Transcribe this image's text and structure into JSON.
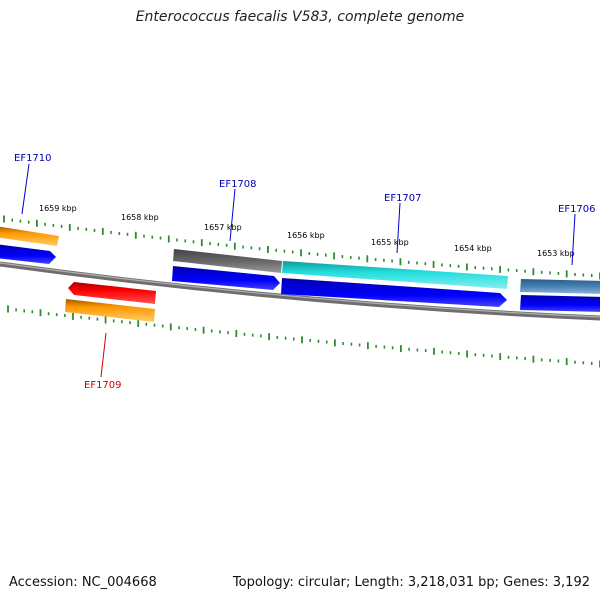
{
  "title": "Enterococcus faecalis V583, complete genome",
  "footer": {
    "accession": "Accession: NC_004668",
    "summary": "Topology: circular; Length: 3,218,031 bp; Genes: 3,192"
  },
  "ticks": [
    "1659 kbp",
    "1658 kbp",
    "1657 kbp",
    "1656 kbp",
    "1655 kbp",
    "1654 kbp",
    "1653 kbp"
  ],
  "genes": [
    {
      "name": "EF1710",
      "color": "#0000aa"
    },
    {
      "name": "EF1709",
      "color": "#cc0000"
    },
    {
      "name": "EF1708",
      "color": "#0000aa"
    },
    {
      "name": "EF1707",
      "color": "#0000aa"
    },
    {
      "name": "EF1706",
      "color": "#0000aa"
    }
  ],
  "colors": {
    "backbone": "#808080",
    "cds": "#0000ff",
    "orange": "#ff9900",
    "red": "#ff0000",
    "gray": "#666666",
    "cyan": "#22cccc",
    "steelblue": "#4682b4",
    "tick": "#2e8b2e",
    "label_line_fwd": "#0000cc",
    "label_line_rev": "#cc0000"
  }
}
